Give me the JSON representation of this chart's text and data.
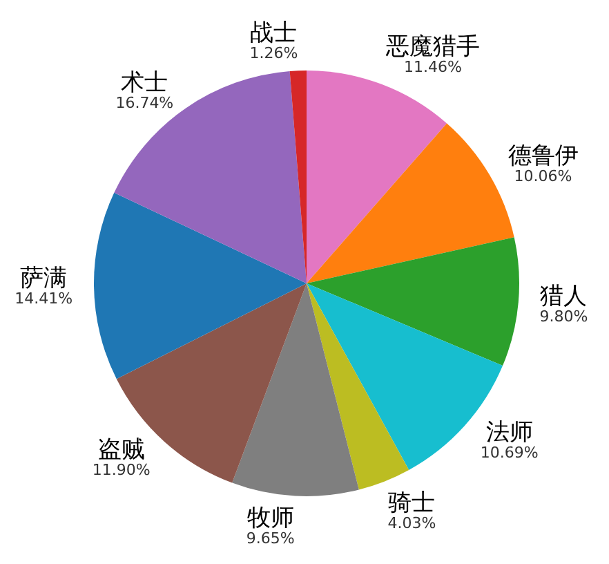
{
  "chart_data": {
    "type": "pie",
    "categories": [
      "恶魔猎手",
      "德鲁伊",
      "猎人",
      "法师",
      "骑士",
      "牧师",
      "盗贼",
      "萨满",
      "术士",
      "战士"
    ],
    "values": [
      11.46,
      10.06,
      9.8,
      10.69,
      4.03,
      9.65,
      11.9,
      14.41,
      16.74,
      1.26
    ],
    "value_labels": [
      "11.46%",
      "10.06%",
      "9.80%",
      "10.69%",
      "4.03%",
      "9.65%",
      "11.90%",
      "14.41%",
      "16.74%",
      "1.26%"
    ],
    "colors": [
      "#e377c2",
      "#ff7f0e",
      "#2ca02c",
      "#17becf",
      "#bcbd22",
      "#7f7f7f",
      "#8c564b",
      "#1f77b4",
      "#9467bd",
      "#d62728"
    ]
  }
}
